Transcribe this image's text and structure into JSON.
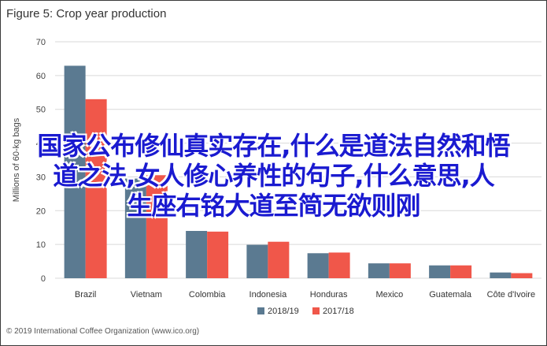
{
  "chart_data": {
    "type": "bar",
    "title": "Figure 5: Crop year production",
    "ylabel": "Millions of 60-kg bags",
    "ylim": [
      0,
      70
    ],
    "yticks": [
      0,
      10,
      20,
      30,
      40,
      50,
      60,
      70
    ],
    "categories": [
      "Brazil",
      "Vietnam",
      "Colombia",
      "Indonesia",
      "Honduras",
      "Mexico",
      "Guatemala",
      "Côte d'Ivoire"
    ],
    "series": [
      {
        "name": "2018/19",
        "color": "#5b7a91",
        "values": [
          62.9,
          29.5,
          14.0,
          9.9,
          7.4,
          4.4,
          3.8,
          1.7
        ]
      },
      {
        "name": "2017/18",
        "color": "#f0574a",
        "values": [
          53.0,
          30.5,
          13.8,
          10.8,
          7.6,
          4.4,
          3.8,
          1.5
        ]
      }
    ],
    "legend": "bottom",
    "grid": true
  },
  "footer": "© 2019 International Coffee Organization (www.ico.org)",
  "overlay_text": [
    "国家公布修仙真实存在,什么是道法自然和悟",
    "道之法,女人修心养性的句子,什么意思,人",
    "生座右铭大道至简无欲则刚"
  ]
}
